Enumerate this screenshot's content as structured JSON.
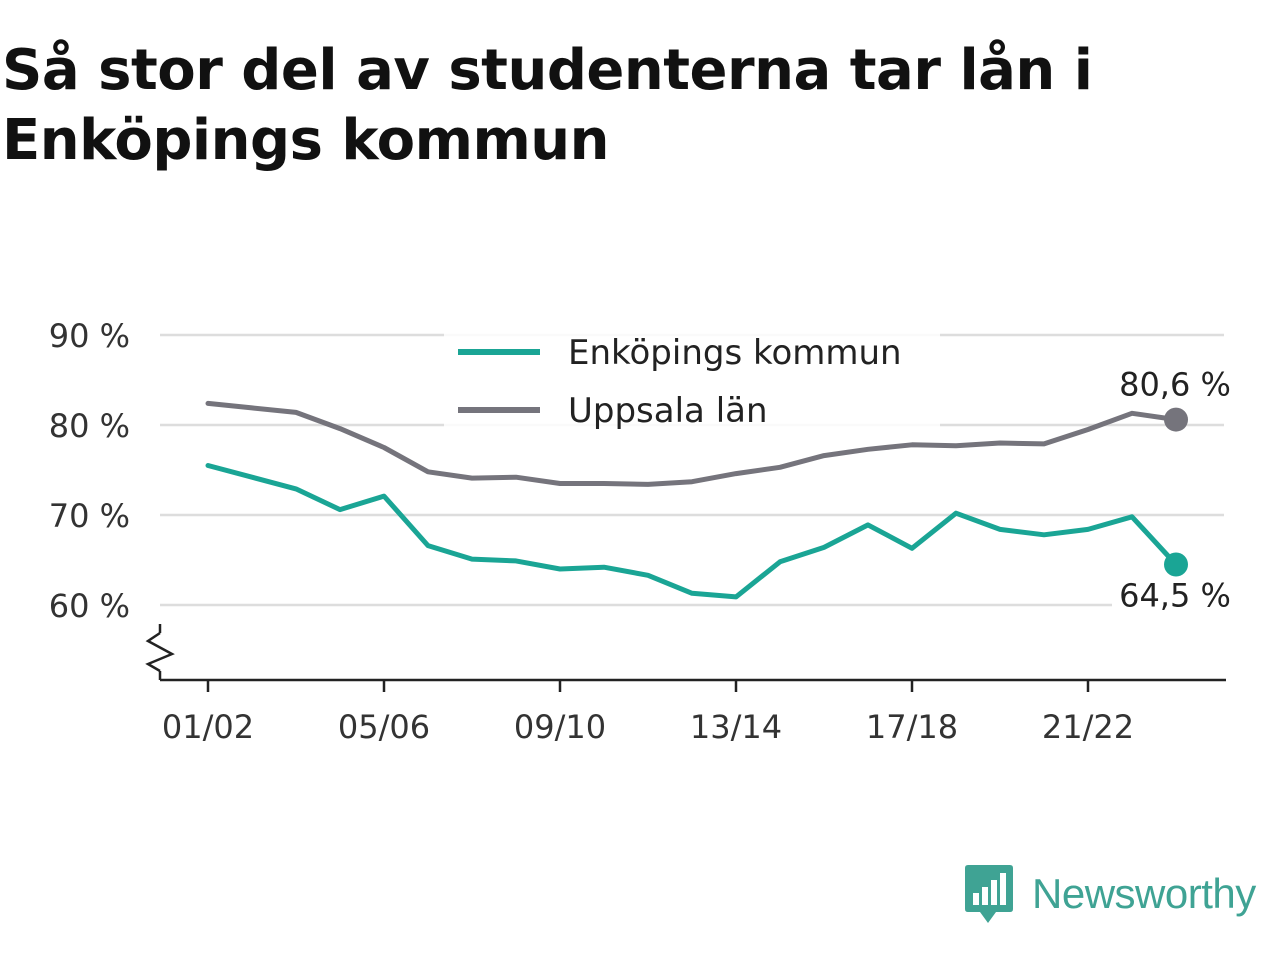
{
  "title": "Så stor del av studenterna tar lån i Enköpings kommun",
  "brand": {
    "name": "Newsworthy",
    "icon": "newsworthy-logo-icon",
    "color": "#3fa394"
  },
  "chart_data": {
    "type": "line",
    "title": "Så stor del av studenterna tar lån i Enköpings kommun",
    "xlabel": "",
    "ylabel": "",
    "ylim": [
      52,
      92
    ],
    "y_axis_break": true,
    "grid": true,
    "legend_position": "top-center",
    "yticks": [
      60,
      70,
      80,
      90
    ],
    "ytick_labels": [
      "60 %",
      "70 %",
      "80 %",
      "90 %"
    ],
    "x": [
      "01/02",
      "02/03",
      "03/04",
      "04/05",
      "05/06",
      "06/07",
      "07/08",
      "08/09",
      "09/10",
      "10/11",
      "11/12",
      "12/13",
      "13/14",
      "14/15",
      "15/16",
      "16/17",
      "17/18",
      "18/19",
      "19/20",
      "20/21",
      "21/22",
      "22/23",
      "23/24"
    ],
    "xtick_labels": [
      "01/02",
      "05/06",
      "09/10",
      "13/14",
      "17/18",
      "21/22"
    ],
    "series": [
      {
        "name": "Enköpings kommun",
        "color": "#1aa595",
        "values": [
          75.5,
          74.2,
          72.9,
          70.6,
          72.1,
          66.6,
          65.1,
          64.9,
          64.0,
          64.2,
          63.3,
          61.3,
          60.9,
          64.8,
          66.4,
          68.9,
          66.3,
          70.2,
          68.4,
          67.8,
          68.4,
          69.8,
          64.5
        ],
        "end_label": "64,5 %"
      },
      {
        "name": "Uppsala län",
        "color": "#75747c",
        "values": [
          82.4,
          81.9,
          81.4,
          79.6,
          77.5,
          74.8,
          74.1,
          74.2,
          73.5,
          73.5,
          73.4,
          73.7,
          74.6,
          75.3,
          76.6,
          77.3,
          77.8,
          77.7,
          78.0,
          77.9,
          79.5,
          81.3,
          80.6
        ],
        "end_label": "80,6 %"
      }
    ]
  }
}
